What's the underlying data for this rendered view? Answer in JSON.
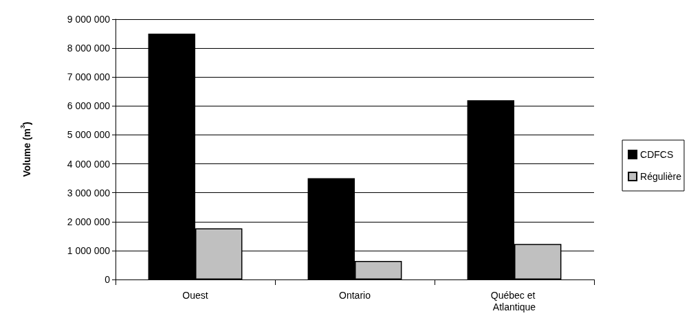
{
  "chart_data": {
    "type": "bar",
    "ylabel": "Volume (m$^{3}$)",
    "categories": [
      "Ouest",
      "Ontario",
      "Québec et Atlantique"
    ],
    "series": [
      {
        "name": "CDFCS",
        "color": "#000000",
        "values": [
          8500000,
          3500000,
          6200000
        ]
      },
      {
        "name": "Régulière",
        "color": "#c0c0c0",
        "values": [
          1770000,
          640000,
          1230000
        ]
      }
    ],
    "ylim": [
      0,
      9000000
    ],
    "yticks": [
      {
        "value": 0,
        "label": "0"
      },
      {
        "value": 1000000,
        "label": "1 000 000"
      },
      {
        "value": 2000000,
        "label": "2 000 000"
      },
      {
        "value": 3000000,
        "label": "3 000 000"
      },
      {
        "value": 4000000,
        "label": "4 000 000"
      },
      {
        "value": 5000000,
        "label": "5 000 000"
      },
      {
        "value": 6000000,
        "label": "6 000 000"
      },
      {
        "value": 7000000,
        "label": "7 000 000"
      },
      {
        "value": 8000000,
        "label": "8 000 000"
      },
      {
        "value": 9000000,
        "label": "9 000 000"
      }
    ],
    "grid": "y",
    "legend": "right"
  }
}
